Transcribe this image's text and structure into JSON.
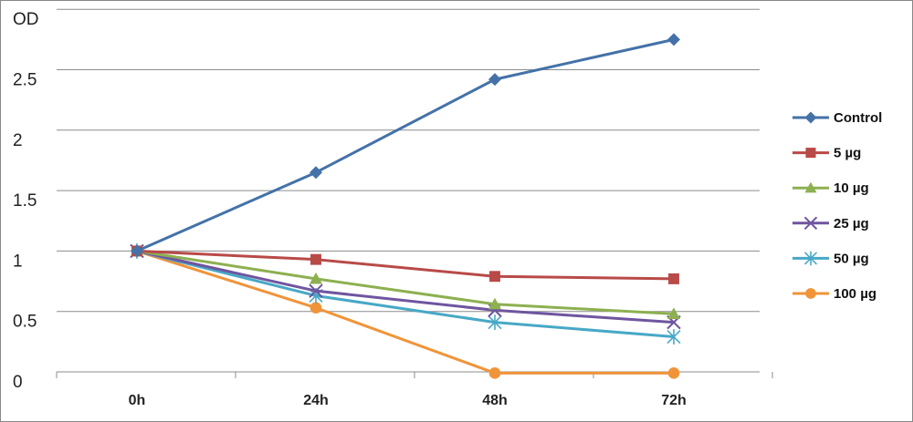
{
  "chart_data": {
    "type": "line",
    "title": "",
    "ylabel": "OD",
    "xlabel": "",
    "categories": [
      "0h",
      "24h",
      "48h",
      "72h"
    ],
    "yticks": [
      0,
      0.5,
      1,
      1.5,
      2,
      2.5
    ],
    "ylim": [
      -0.15,
      3.0
    ],
    "grid": true,
    "legend_position": "right",
    "series": [
      {
        "name": "Control",
        "values": [
          1.0,
          1.65,
          2.42,
          2.75
        ],
        "color": "#4472A8",
        "marker": "diamond"
      },
      {
        "name": "5 µg",
        "values": [
          1.0,
          0.93,
          0.79,
          0.77
        ],
        "color": "#B84A48",
        "marker": "square"
      },
      {
        "name": "10 µg",
        "values": [
          1.0,
          0.77,
          0.56,
          0.48
        ],
        "color": "#8DB050",
        "marker": "triangle"
      },
      {
        "name": "25 µg",
        "values": [
          1.0,
          0.67,
          0.51,
          0.41
        ],
        "color": "#6F55A0",
        "marker": "x"
      },
      {
        "name": "50 µg",
        "values": [
          1.0,
          0.63,
          0.41,
          0.29
        ],
        "color": "#47A8C6",
        "marker": "star"
      },
      {
        "name": "100 µg",
        "values": [
          1.0,
          0.53,
          -0.01,
          -0.01
        ],
        "color": "#F0943A",
        "marker": "circle"
      }
    ]
  }
}
